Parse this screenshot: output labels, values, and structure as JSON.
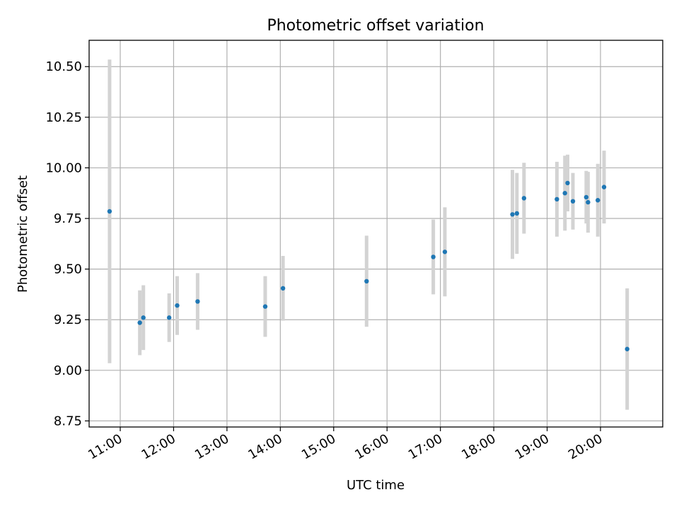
{
  "chart_data": {
    "type": "scatter",
    "title": "Photometric offset variation",
    "xlabel": "UTC time",
    "ylabel": "Photometric offset",
    "xlim": [
      "10:25",
      "21:10"
    ],
    "ylim": [
      8.72,
      10.63
    ],
    "grid": true,
    "x_ticks": [
      "11:00",
      "12:00",
      "13:00",
      "14:00",
      "15:00",
      "16:00",
      "17:00",
      "18:00",
      "19:00",
      "20:00"
    ],
    "y_ticks": [
      "8.75",
      "9.00",
      "9.25",
      "9.50",
      "9.75",
      "10.00",
      "10.25",
      "10.50"
    ],
    "colors": {
      "point": "#1f77b4",
      "errorbar": "#d3d3d3",
      "grid": "#b0b0b0"
    },
    "points": [
      {
        "x": "10:48",
        "y": 9.785,
        "err": 0.75
      },
      {
        "x": "11:22",
        "y": 9.235,
        "err": 0.16
      },
      {
        "x": "11:26",
        "y": 9.26,
        "err": 0.16
      },
      {
        "x": "11:55",
        "y": 9.26,
        "err": 0.12
      },
      {
        "x": "12:04",
        "y": 9.32,
        "err": 0.145
      },
      {
        "x": "12:27",
        "y": 9.34,
        "err": 0.14
      },
      {
        "x": "13:43",
        "y": 9.315,
        "err": 0.15
      },
      {
        "x": "14:03",
        "y": 9.405,
        "err": 0.16
      },
      {
        "x": "15:37",
        "y": 9.44,
        "err": 0.225
      },
      {
        "x": "16:52",
        "y": 9.56,
        "err": 0.185
      },
      {
        "x": "17:05",
        "y": 9.585,
        "err": 0.22
      },
      {
        "x": "18:21",
        "y": 9.77,
        "err": 0.22
      },
      {
        "x": "18:26",
        "y": 9.775,
        "err": 0.2
      },
      {
        "x": "18:34",
        "y": 9.85,
        "err": 0.175
      },
      {
        "x": "19:11",
        "y": 9.845,
        "err": 0.185
      },
      {
        "x": "19:20",
        "y": 9.875,
        "err": 0.185
      },
      {
        "x": "19:23",
        "y": 9.925,
        "err": 0.14
      },
      {
        "x": "19:29",
        "y": 9.835,
        "err": 0.14
      },
      {
        "x": "19:44",
        "y": 9.855,
        "err": 0.13
      },
      {
        "x": "19:46",
        "y": 9.83,
        "err": 0.15
      },
      {
        "x": "19:57",
        "y": 9.84,
        "err": 0.18
      },
      {
        "x": "20:04",
        "y": 9.905,
        "err": 0.18
      },
      {
        "x": "20:30",
        "y": 9.105,
        "err": 0.3
      }
    ]
  }
}
